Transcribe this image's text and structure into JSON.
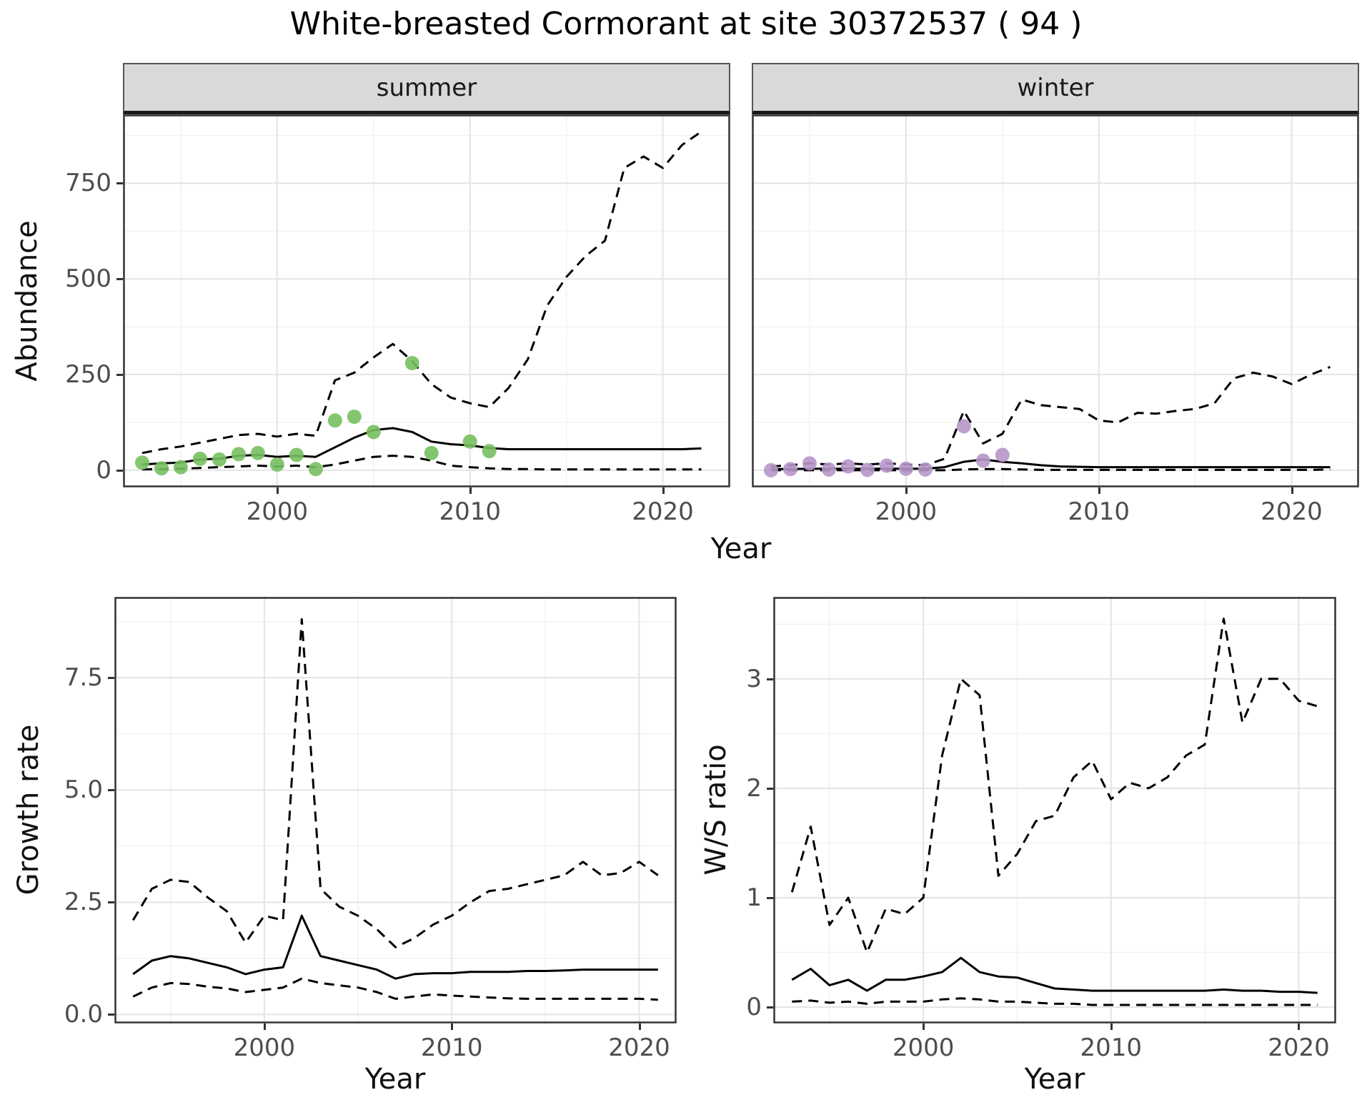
{
  "title": "White-breasted Cormorant at site 30372537 ( 94 )",
  "facets": {
    "summer": "summer",
    "winter": "winter"
  },
  "axis_labels": {
    "abundance": "Abundance",
    "year_top": "Year",
    "growth_rate": "Growth rate",
    "ws_ratio": "W/S ratio",
    "year_growth": "Year",
    "year_ws": "Year"
  },
  "colors": {
    "summer_points": "#77C05F",
    "winter_points": "#B796CA",
    "line": "#000000",
    "strip_bg": "#D9D9D9",
    "grid_major": "#E4E4E4",
    "grid_minor": "#F1F1F1",
    "panel_border": "#333333",
    "tick_text": "#4D4D4D"
  },
  "chart_data": [
    {
      "id": "abundance-summer",
      "type": "line",
      "facet": "summer",
      "xlabel": "Year",
      "ylabel": "Abundance",
      "xlim": [
        1992,
        2023.5
      ],
      "ylim": [
        -45,
        930
      ],
      "xticks": [
        2000,
        2010,
        2020
      ],
      "xtick_labels": [
        "2000",
        "2010",
        "2020"
      ],
      "yticks": [
        0,
        250,
        500,
        750
      ],
      "ytick_labels": [
        "0",
        "250",
        "500",
        "750"
      ],
      "show_yaxis": true,
      "years": [
        1993,
        1994,
        1995,
        1996,
        1997,
        1998,
        1999,
        2000,
        2001,
        2002,
        2003,
        2004,
        2005,
        2006,
        2007,
        2008,
        2009,
        2010,
        2011,
        2012,
        2013,
        2014,
        2015,
        2016,
        2017,
        2018,
        2019,
        2020,
        2021,
        2022
      ],
      "series": [
        {
          "name": "median",
          "style": "solid",
          "values": [
            15,
            18,
            20,
            28,
            30,
            38,
            40,
            35,
            38,
            35,
            60,
            85,
            105,
            110,
            100,
            75,
            68,
            65,
            58,
            55,
            55,
            55,
            55,
            55,
            55,
            55,
            55,
            55,
            55,
            57
          ]
        },
        {
          "name": "upper95",
          "style": "dashed",
          "values": [
            45,
            55,
            62,
            72,
            82,
            92,
            95,
            88,
            95,
            90,
            235,
            255,
            295,
            330,
            285,
            225,
            190,
            175,
            165,
            215,
            290,
            430,
            505,
            560,
            600,
            790,
            820,
            790,
            850,
            885
          ]
        },
        {
          "name": "lower95",
          "style": "dashed",
          "values": [
            2,
            3,
            4,
            6,
            8,
            10,
            12,
            10,
            12,
            8,
            15,
            25,
            35,
            38,
            35,
            25,
            12,
            8,
            5,
            3,
            3,
            2,
            2,
            2,
            2,
            2,
            2,
            2,
            2,
            2
          ]
        }
      ],
      "points": {
        "name": "observed-counts",
        "color": "#77C05F",
        "x": [
          1993,
          1994,
          1995,
          1996,
          1997,
          1998,
          1999,
          2000,
          2001,
          2002,
          2003,
          2004,
          2005,
          2007,
          2008,
          2010,
          2011
        ],
        "y": [
          20,
          5,
          8,
          30,
          28,
          42,
          45,
          15,
          40,
          3,
          130,
          140,
          100,
          280,
          45,
          75,
          50
        ]
      }
    },
    {
      "id": "abundance-winter",
      "type": "line",
      "facet": "winter",
      "xlabel": "Year",
      "ylabel": "Abundance",
      "xlim": [
        1992,
        2023.5
      ],
      "ylim": [
        -45,
        930
      ],
      "xticks": [
        2000,
        2010,
        2020
      ],
      "xtick_labels": [
        "2000",
        "2010",
        "2020"
      ],
      "yticks": [
        0,
        250,
        500,
        750
      ],
      "ytick_labels": [
        "0",
        "250",
        "500",
        "750"
      ],
      "show_yaxis": false,
      "years": [
        1993,
        1994,
        1995,
        1996,
        1997,
        1998,
        1999,
        2000,
        2001,
        2002,
        2003,
        2004,
        2005,
        2006,
        2007,
        2008,
        2009,
        2010,
        2011,
        2012,
        2013,
        2014,
        2015,
        2016,
        2017,
        2018,
        2019,
        2020,
        2021,
        2022
      ],
      "series": [
        {
          "name": "median",
          "style": "solid",
          "values": [
            3,
            3,
            4,
            4,
            4,
            4,
            4,
            4,
            4,
            8,
            22,
            28,
            22,
            18,
            13,
            10,
            9,
            8,
            8,
            8,
            8,
            8,
            8,
            8,
            8,
            8,
            8,
            8,
            8,
            8
          ]
        },
        {
          "name": "upper95",
          "style": "dashed",
          "values": [
            10,
            13,
            18,
            15,
            18,
            15,
            18,
            15,
            13,
            30,
            155,
            70,
            95,
            185,
            170,
            165,
            160,
            130,
            125,
            150,
            148,
            155,
            160,
            175,
            240,
            255,
            245,
            225,
            250,
            270
          ]
        },
        {
          "name": "lower95",
          "style": "dashed",
          "values": [
            0,
            0,
            0,
            0,
            0,
            0,
            0,
            0,
            0,
            0,
            2,
            3,
            3,
            2,
            1,
            1,
            1,
            1,
            1,
            1,
            1,
            1,
            1,
            1,
            1,
            1,
            1,
            1,
            1,
            2
          ]
        }
      ],
      "points": {
        "name": "observed-counts",
        "color": "#B796CA",
        "x": [
          1993,
          1994,
          1995,
          1996,
          1997,
          1998,
          1999,
          2000,
          2001,
          2003,
          2004,
          2005
        ],
        "y": [
          0,
          3,
          18,
          2,
          10,
          1,
          12,
          4,
          2,
          115,
          25,
          40
        ]
      }
    },
    {
      "id": "growth-rate",
      "type": "line",
      "facet": null,
      "xlabel": "Year",
      "ylabel": "Growth rate",
      "xlim": [
        1992,
        2022
      ],
      "ylim": [
        -0.2,
        9.3
      ],
      "xticks": [
        2000,
        2010,
        2020
      ],
      "xtick_labels": [
        "2000",
        "2010",
        "2020"
      ],
      "yticks": [
        0,
        2.5,
        5,
        7.5
      ],
      "ytick_labels": [
        "0.0",
        "2.5",
        "5.0",
        "7.5"
      ],
      "show_yaxis": true,
      "years": [
        1993,
        1994,
        1995,
        1996,
        1997,
        1998,
        1999,
        2000,
        2001,
        2002,
        2003,
        2004,
        2005,
        2006,
        2007,
        2008,
        2009,
        2010,
        2011,
        2012,
        2013,
        2014,
        2015,
        2016,
        2017,
        2018,
        2019,
        2020,
        2021
      ],
      "series": [
        {
          "name": "median",
          "style": "solid",
          "values": [
            0.9,
            1.2,
            1.3,
            1.25,
            1.15,
            1.05,
            0.9,
            1.0,
            1.05,
            2.2,
            1.3,
            1.2,
            1.1,
            1.0,
            0.8,
            0.9,
            0.92,
            0.92,
            0.95,
            0.95,
            0.95,
            0.97,
            0.97,
            0.98,
            1.0,
            1.0,
            1.0,
            1.0,
            1.0
          ]
        },
        {
          "name": "upper95",
          "style": "dashed",
          "values": [
            2.1,
            2.8,
            3.0,
            2.95,
            2.6,
            2.3,
            1.6,
            2.2,
            2.1,
            8.8,
            2.8,
            2.4,
            2.2,
            1.9,
            1.5,
            1.7,
            2.0,
            2.2,
            2.5,
            2.75,
            2.8,
            2.9,
            3.0,
            3.1,
            3.4,
            3.1,
            3.15,
            3.4,
            3.1
          ]
        },
        {
          "name": "lower95",
          "style": "dashed",
          "values": [
            0.4,
            0.6,
            0.7,
            0.68,
            0.62,
            0.58,
            0.5,
            0.55,
            0.6,
            0.8,
            0.7,
            0.65,
            0.6,
            0.5,
            0.35,
            0.4,
            0.45,
            0.42,
            0.4,
            0.38,
            0.36,
            0.35,
            0.35,
            0.35,
            0.35,
            0.35,
            0.35,
            0.35,
            0.33
          ]
        }
      ],
      "points": null
    },
    {
      "id": "ws-ratio",
      "type": "line",
      "facet": null,
      "xlabel": "Year",
      "ylabel": "W/S ratio",
      "xlim": [
        1992,
        2022
      ],
      "ylim": [
        -0.15,
        3.75
      ],
      "xticks": [
        2000,
        2010,
        2020
      ],
      "xtick_labels": [
        "2000",
        "2010",
        "2020"
      ],
      "yticks": [
        0,
        1,
        2,
        3
      ],
      "ytick_labels": [
        "0",
        "1",
        "2",
        "3"
      ],
      "show_yaxis": true,
      "years": [
        1993,
        1994,
        1995,
        1996,
        1997,
        1998,
        1999,
        2000,
        2001,
        2002,
        2003,
        2004,
        2005,
        2006,
        2007,
        2008,
        2009,
        2010,
        2011,
        2012,
        2013,
        2014,
        2015,
        2016,
        2017,
        2018,
        2019,
        2020,
        2021
      ],
      "series": [
        {
          "name": "median",
          "style": "solid",
          "values": [
            0.25,
            0.35,
            0.2,
            0.25,
            0.15,
            0.25,
            0.25,
            0.28,
            0.32,
            0.45,
            0.32,
            0.28,
            0.27,
            0.22,
            0.17,
            0.16,
            0.15,
            0.15,
            0.15,
            0.15,
            0.15,
            0.15,
            0.15,
            0.16,
            0.15,
            0.15,
            0.14,
            0.14,
            0.13
          ]
        },
        {
          "name": "upper95",
          "style": "dashed",
          "values": [
            1.05,
            1.65,
            0.75,
            1.0,
            0.5,
            0.9,
            0.85,
            1.0,
            2.3,
            3.0,
            2.85,
            1.2,
            1.4,
            1.7,
            1.75,
            2.1,
            2.25,
            1.9,
            2.05,
            2.0,
            2.1,
            2.3,
            2.4,
            3.55,
            2.6,
            3.0,
            3.0,
            2.8,
            2.75
          ]
        },
        {
          "name": "lower95",
          "style": "dashed",
          "values": [
            0.05,
            0.06,
            0.04,
            0.05,
            0.03,
            0.05,
            0.05,
            0.05,
            0.07,
            0.08,
            0.07,
            0.05,
            0.05,
            0.04,
            0.03,
            0.03,
            0.02,
            0.02,
            0.02,
            0.02,
            0.02,
            0.02,
            0.02,
            0.02,
            0.02,
            0.02,
            0.02,
            0.02,
            0.02
          ]
        }
      ],
      "points": null
    }
  ]
}
